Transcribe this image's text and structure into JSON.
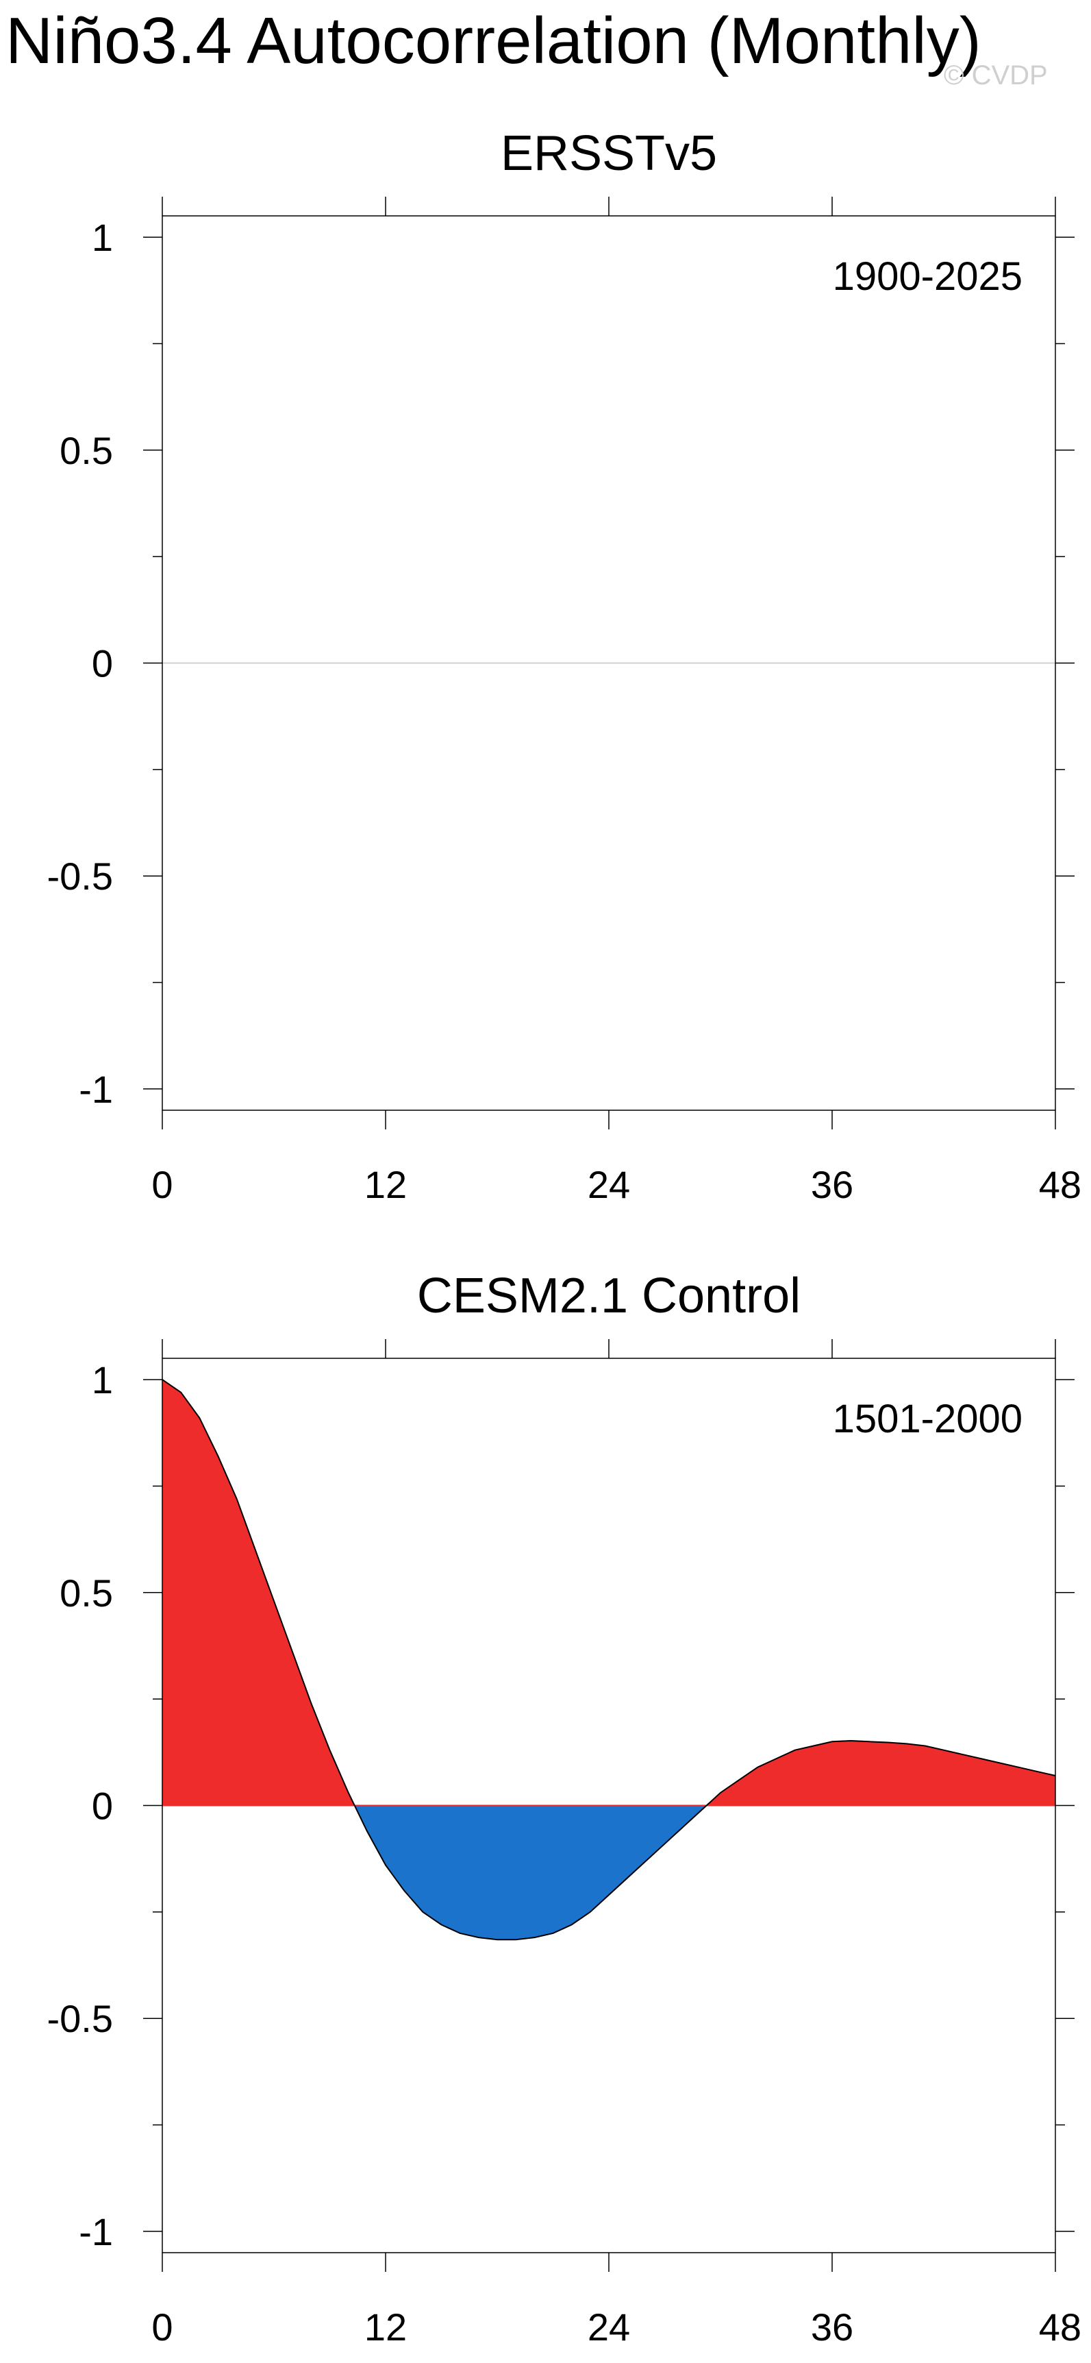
{
  "title": "Niño3.4 Autocorrelation (Monthly)",
  "watermark": "© CVDP",
  "colors": {
    "positive": "#ee2c2c",
    "negative": "#1c73cc",
    "frame": "#000000",
    "zero_line": "#d0d0d0"
  },
  "chart_data": [
    {
      "type": "area",
      "title": "ERSSTv5",
      "period": "1900-2025",
      "xlabel": "",
      "ylabel": "",
      "xlim": [
        0,
        48
      ],
      "ylim": [
        -1.05,
        1.05
      ],
      "x_ticks": [
        0,
        12,
        24,
        36,
        48
      ],
      "x_tick_labels": [
        "0",
        "12",
        "24",
        "36",
        "48"
      ],
      "y_ticks": [
        1,
        0.5,
        0,
        -0.5,
        -1
      ],
      "y_tick_labels": [
        "1",
        "0.5",
        "0",
        "-0.5",
        "-1"
      ],
      "fill_above_zero": "red",
      "fill_below_zero": "blue",
      "series": []
    },
    {
      "type": "area",
      "title": "CESM2.1 Control",
      "period": "1501-2000",
      "xlabel": "",
      "ylabel": "",
      "xlim": [
        0,
        48
      ],
      "ylim": [
        -1.05,
        1.05
      ],
      "x_ticks": [
        0,
        12,
        24,
        36,
        48
      ],
      "x_tick_labels": [
        "0",
        "12",
        "24",
        "36",
        "48"
      ],
      "y_ticks": [
        1,
        0.5,
        0,
        -0.5,
        -1
      ],
      "y_tick_labels": [
        "1",
        "0.5",
        "0",
        "-0.5",
        "-1"
      ],
      "fill_above_zero": "red",
      "fill_below_zero": "blue",
      "series": [
        {
          "x": [
            0,
            1,
            2,
            3,
            4,
            5,
            6,
            7,
            8,
            9,
            10,
            11,
            12,
            13,
            14,
            15,
            16,
            17,
            18,
            19,
            20,
            21,
            22,
            23,
            24,
            25,
            26,
            27,
            28,
            29,
            30,
            31,
            32,
            33,
            34,
            35,
            36,
            37,
            38,
            39,
            40,
            41,
            42,
            43,
            44,
            45,
            46,
            47,
            48
          ],
          "y": [
            1.0,
            0.97,
            0.91,
            0.82,
            0.72,
            0.6,
            0.48,
            0.36,
            0.24,
            0.13,
            0.03,
            -0.06,
            -0.14,
            -0.2,
            -0.25,
            -0.28,
            -0.3,
            -0.31,
            -0.315,
            -0.315,
            -0.31,
            -0.3,
            -0.28,
            -0.25,
            -0.21,
            -0.17,
            -0.13,
            -0.09,
            -0.05,
            -0.01,
            0.03,
            0.06,
            0.09,
            0.11,
            0.13,
            0.14,
            0.15,
            0.152,
            0.15,
            0.148,
            0.145,
            0.14,
            0.13,
            0.12,
            0.11,
            0.1,
            0.09,
            0.08,
            0.07
          ]
        }
      ]
    }
  ]
}
